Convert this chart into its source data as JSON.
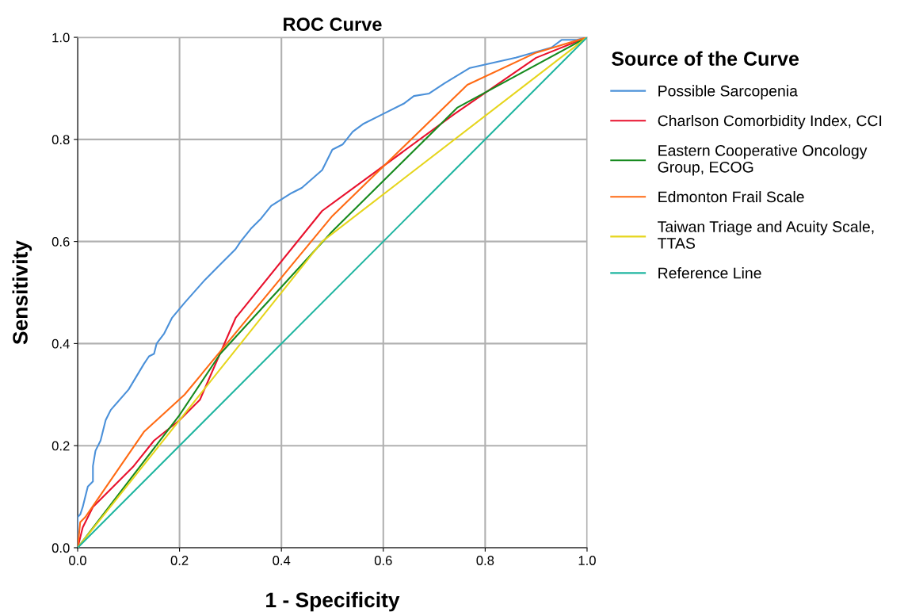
{
  "chart_data": {
    "type": "line",
    "title": "ROC Curve",
    "xlabel": "1 - Specificity",
    "ylabel": "Sensitivity",
    "legend_title": "Source of the Curve",
    "legend": "right",
    "grid": true,
    "marker": "none",
    "line_style": "solid",
    "xlim": [
      0,
      1
    ],
    "ylim": [
      0,
      1
    ],
    "xticks": [
      {
        "value": 0,
        "label": "0.0"
      },
      {
        "value": 0.2,
        "label": "0.2"
      },
      {
        "value": 0.4,
        "label": "0.4"
      },
      {
        "value": 0.6,
        "label": "0.6"
      },
      {
        "value": 0.8,
        "label": "0.8"
      },
      {
        "value": 1,
        "label": "1.0"
      }
    ],
    "yticks": [
      {
        "value": 0,
        "label": "0.0"
      },
      {
        "value": 0.2,
        "label": "0.2"
      },
      {
        "value": 0.4,
        "label": "0.4"
      },
      {
        "value": 0.6,
        "label": "0.6"
      },
      {
        "value": 0.8,
        "label": "0.8"
      },
      {
        "value": 1,
        "label": "1.0"
      }
    ],
    "series": [
      {
        "name": "Possible Sarcopenia",
        "color": "#4a90d9",
        "x": [
          0,
          0,
          0.005,
          0.01,
          0.015,
          0.02,
          0.03,
          0.03,
          0.035,
          0.045,
          0.05,
          0.055,
          0.06,
          0.065,
          0.1,
          0.13,
          0.14,
          0.15,
          0.155,
          0.17,
          0.185,
          0.21,
          0.25,
          0.28,
          0.31,
          0.32,
          0.34,
          0.36,
          0.38,
          0.42,
          0.44,
          0.48,
          0.5,
          0.52,
          0.54,
          0.56,
          0.6,
          0.64,
          0.66,
          0.69,
          0.72,
          0.77,
          0.86,
          0.93,
          0.95,
          0.98,
          1
        ],
        "values": [
          0,
          0.06,
          0.065,
          0.08,
          0.1,
          0.12,
          0.13,
          0.16,
          0.19,
          0.21,
          0.23,
          0.25,
          0.26,
          0.27,
          0.31,
          0.36,
          0.375,
          0.38,
          0.4,
          0.42,
          0.45,
          0.48,
          0.525,
          0.555,
          0.585,
          0.6,
          0.625,
          0.645,
          0.67,
          0.695,
          0.705,
          0.74,
          0.78,
          0.79,
          0.815,
          0.83,
          0.85,
          0.87,
          0.885,
          0.89,
          0.91,
          0.94,
          0.96,
          0.98,
          0.995,
          0.995,
          1
        ]
      },
      {
        "name": "Charlson Comorbidity Index, CCI",
        "color": "#e8112d",
        "x": [
          0,
          0.01,
          0.03,
          0.07,
          0.11,
          0.15,
          0.2,
          0.24,
          0.31,
          0.48,
          0.74,
          0.9,
          1
        ],
        "values": [
          0,
          0.04,
          0.08,
          0.12,
          0.16,
          0.21,
          0.25,
          0.29,
          0.45,
          0.66,
          0.85,
          0.96,
          1
        ]
      },
      {
        "name": "Eastern Cooperative Oncology\nGroup, ECOG",
        "color": "#168a1e",
        "x": [
          0,
          0.1,
          0.2,
          0.28,
          0.5,
          0.745,
          1
        ],
        "values": [
          0,
          0.13,
          0.26,
          0.38,
          0.62,
          0.862,
          1
        ]
      },
      {
        "name": "Edmonton Frail Scale",
        "color": "#ff6a13",
        "x": [
          0,
          0.005,
          0.015,
          0.13,
          0.21,
          0.5,
          0.765,
          0.9,
          1
        ],
        "values": [
          0,
          0.05,
          0.06,
          0.227,
          0.3,
          0.65,
          0.907,
          0.97,
          1
        ]
      },
      {
        "name": "Taiwan Triage and Acuity Scale,\nTTAS",
        "color": "#e6d51c",
        "x": [
          0,
          0.48,
          1
        ],
        "values": [
          0,
          0.6,
          1
        ]
      },
      {
        "name": "Reference Line",
        "color": "#1fb5a0",
        "x": [
          0,
          1
        ],
        "values": [
          0,
          1
        ]
      }
    ]
  }
}
